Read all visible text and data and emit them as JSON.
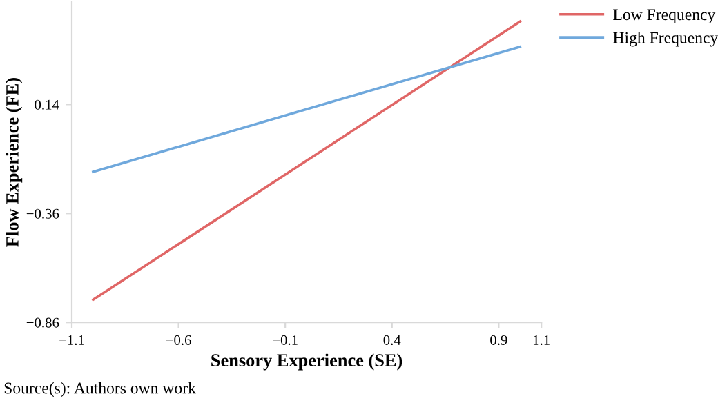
{
  "chart_data": {
    "type": "line",
    "xlabel": "Sensory Experience (SE)",
    "ylabel": "Flow Experience (FE)",
    "x": [
      -1,
      1
    ],
    "series": [
      {
        "name": "Low Frequency",
        "color": "#e06666",
        "values": [
          -0.756,
          0.52
        ]
      },
      {
        "name": "High Frequency",
        "color": "#6fa8dc",
        "values": [
          -0.169,
          0.405
        ]
      }
    ],
    "xlim": [
      -1.1,
      1.1
    ],
    "xticks": [
      -1.1,
      -0.6,
      -0.1,
      0.4,
      0.9,
      1.1
    ],
    "ylim": [
      -0.86,
      0.61
    ],
    "yticks": [
      -0.86,
      -0.36,
      0.14
    ],
    "grid": false,
    "legend": "top right",
    "marker": "none",
    "line_style": "solid",
    "annotations": [
      "Source(s): Authors own work"
    ]
  }
}
